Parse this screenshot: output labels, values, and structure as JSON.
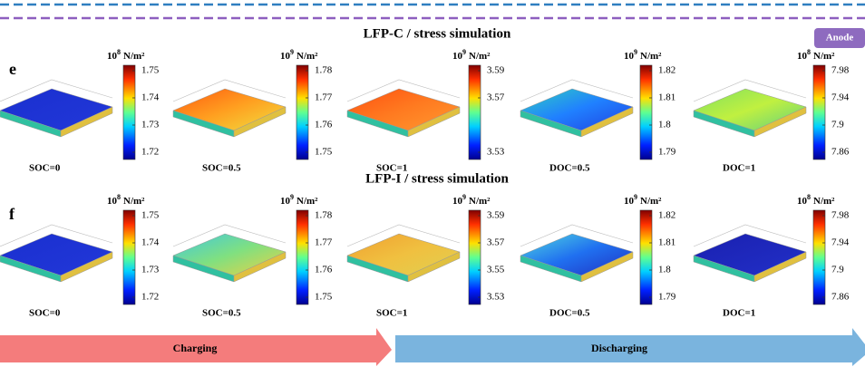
{
  "badge": "Anode",
  "rows": [
    {
      "letter": "e",
      "title": "LFP-C / stress simulation",
      "panels": [
        {
          "label": "SOC=0",
          "unit": {
            "base": "10",
            "exp": "8",
            "unit": "N/m²"
          },
          "ticks": [
            1.75,
            1.74,
            1.73,
            1.72
          ]
        },
        {
          "label": "SOC=0.5",
          "unit": {
            "base": "10",
            "exp": "9",
            "unit": "N/m²"
          },
          "ticks": [
            1.78,
            1.77,
            1.76,
            1.75
          ]
        },
        {
          "label": "SOC=1",
          "unit": {
            "base": "10",
            "exp": "9",
            "unit": "N/m²"
          },
          "ticks": [
            3.59,
            3.57,
            3.53
          ]
        },
        {
          "label": "DOC=0.5",
          "unit": {
            "base": "10",
            "exp": "9",
            "unit": "N/m²"
          },
          "ticks": [
            1.82,
            1.81,
            1.8,
            1.79
          ]
        },
        {
          "label": "DOC=1",
          "unit": {
            "base": "10",
            "exp": "8",
            "unit": "N/m²"
          },
          "ticks": [
            7.98,
            7.94,
            7.9,
            7.86
          ]
        }
      ]
    },
    {
      "letter": "f",
      "title": "LFP-I / stress simulation",
      "panels": [
        {
          "label": "SOC=0",
          "unit": {
            "base": "10",
            "exp": "8",
            "unit": "N/m²"
          },
          "ticks": [
            1.75,
            1.74,
            1.73,
            1.72
          ]
        },
        {
          "label": "SOC=0.5",
          "unit": {
            "base": "10",
            "exp": "9",
            "unit": "N/m²"
          },
          "ticks": [
            1.78,
            1.77,
            1.76,
            1.75
          ]
        },
        {
          "label": "SOC=1",
          "unit": {
            "base": "10",
            "exp": "9",
            "unit": "N/m²"
          },
          "ticks": [
            3.59,
            3.57,
            3.55,
            3.53
          ]
        },
        {
          "label": "DOC=0.5",
          "unit": {
            "base": "10",
            "exp": "9",
            "unit": "N/m²"
          },
          "ticks": [
            1.82,
            1.81,
            1.8,
            1.79
          ]
        },
        {
          "label": "DOC=1",
          "unit": {
            "base": "10",
            "exp": "8",
            "unit": "N/m²"
          },
          "ticks": [
            7.98,
            7.94,
            7.9,
            7.86
          ]
        }
      ]
    }
  ],
  "arrows": {
    "charging": "Charging",
    "discharging": "Discharging"
  }
}
